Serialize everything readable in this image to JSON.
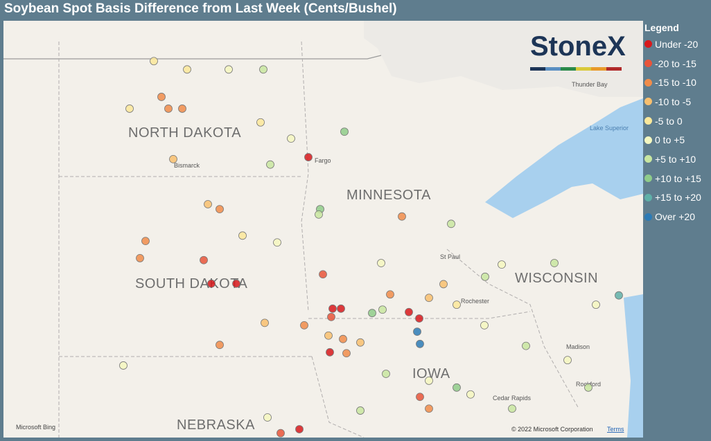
{
  "title": "Soybean Spot Basis Difference from Last Week (Cents/Bushel)",
  "legend": {
    "title": "Legend",
    "items": [
      {
        "label": "Under -20",
        "color": "#d7191c"
      },
      {
        "label": "-20 to -15",
        "color": "#e8553a"
      },
      {
        "label": "-15 to -10",
        "color": "#f08c4a"
      },
      {
        "label": "-10 to -5",
        "color": "#f8bf6e"
      },
      {
        "label": "-5 to 0",
        "color": "#fbe89a"
      },
      {
        "label": "0 to +5",
        "color": "#f4f7c0"
      },
      {
        "label": "+5 to +10",
        "color": "#c8e6a0"
      },
      {
        "label": "+10 to +15",
        "color": "#8fcc8a"
      },
      {
        "label": "+15 to +20",
        "color": "#5fb0a8"
      },
      {
        "label": "Over +20",
        "color": "#2c7bb6"
      }
    ]
  },
  "logo": "StoneX",
  "map": {
    "states": [
      "NORTH DAKOTA",
      "SOUTH DAKOTA",
      "MINNESOTA",
      "WISCONSIN",
      "IOWA",
      "NEBRASKA"
    ],
    "places": [
      "Bismarck",
      "Fargo",
      "St Paul",
      "Rochester",
      "Madison",
      "Rockford",
      "Cedar Rapids",
      "Thunder Bay",
      "Lake Superior"
    ],
    "attribution": "© 2022 Microsoft Corporation",
    "terms": "Terms",
    "provider": "Microsoft Bing"
  },
  "points": [
    {
      "lon": -101.3,
      "lat": 48.93,
      "bin": 4
    },
    {
      "lon": -101.08,
      "lat": 48.2,
      "bin": 2
    },
    {
      "lon": -100.88,
      "lat": 47.96,
      "bin": 2
    },
    {
      "lon": -100.48,
      "lat": 47.96,
      "bin": 2
    },
    {
      "lon": -102.0,
      "lat": 47.96,
      "bin": 4
    },
    {
      "lon": -98.22,
      "lat": 47.68,
      "bin": 4
    },
    {
      "lon": -96.84,
      "lat": 46.97,
      "bin": 0
    },
    {
      "lon": -95.8,
      "lat": 47.49,
      "bin": 7
    },
    {
      "lon": -97.94,
      "lat": 46.82,
      "bin": 6
    },
    {
      "lon": -99.4,
      "lat": 45.91,
      "bin": 2
    },
    {
      "lon": -101.54,
      "lat": 45.26,
      "bin": 2
    },
    {
      "lon": -101.7,
      "lat": 44.91,
      "bin": 2
    },
    {
      "lon": -99.64,
      "lat": 44.39,
      "bin": 0
    },
    {
      "lon": -98.92,
      "lat": 44.39,
      "bin": 0
    },
    {
      "lon": -99.86,
      "lat": 44.87,
      "bin": 1
    },
    {
      "lon": -99.4,
      "lat": 43.14,
      "bin": 2
    },
    {
      "lon": -102.18,
      "lat": 42.72,
      "bin": 5
    },
    {
      "lon": -96.5,
      "lat": 45.91,
      "bin": 7
    },
    {
      "lon": -94.14,
      "lat": 45.76,
      "bin": 2
    },
    {
      "lon": -92.72,
      "lat": 45.61,
      "bin": 6
    },
    {
      "lon": -91.26,
      "lat": 44.78,
      "bin": 5
    },
    {
      "lon": -87.88,
      "lat": 44.15,
      "bin": 8
    },
    {
      "lon": -96.42,
      "lat": 44.58,
      "bin": 1
    },
    {
      "lon": -96.14,
      "lat": 43.88,
      "bin": 0
    },
    {
      "lon": -95.9,
      "lat": 43.88,
      "bin": 0
    },
    {
      "lon": -96.18,
      "lat": 43.71,
      "bin": 1
    },
    {
      "lon": -93.94,
      "lat": 43.81,
      "bin": 0
    },
    {
      "lon": -93.64,
      "lat": 43.68,
      "bin": 0
    },
    {
      "lon": -93.7,
      "lat": 43.41,
      "bin": 9
    },
    {
      "lon": -93.62,
      "lat": 43.16,
      "bin": 9
    },
    {
      "lon": -95.0,
      "lat": 43.79,
      "bin": 7
    },
    {
      "lon": -94.7,
      "lat": 43.86,
      "bin": 6
    },
    {
      "lon": -96.22,
      "lat": 42.99,
      "bin": 0
    },
    {
      "lon": -95.84,
      "lat": 43.26,
      "bin": 2
    },
    {
      "lon": -95.74,
      "lat": 42.97,
      "bin": 2
    },
    {
      "lon": -95.34,
      "lat": 43.19,
      "bin": 3
    },
    {
      "lon": -96.26,
      "lat": 43.33,
      "bin": 3
    },
    {
      "lon": -96.96,
      "lat": 43.54,
      "bin": 2
    },
    {
      "lon": -98.1,
      "lat": 43.59,
      "bin": 3
    },
    {
      "lon": -94.48,
      "lat": 44.17,
      "bin": 2
    },
    {
      "lon": -93.36,
      "lat": 44.1,
      "bin": 3
    },
    {
      "lon": -92.56,
      "lat": 43.96,
      "bin": 4
    },
    {
      "lon": -91.76,
      "lat": 43.54,
      "bin": 5
    },
    {
      "lon": -90.56,
      "lat": 43.12,
      "bin": 6
    },
    {
      "lon": -89.36,
      "lat": 42.83,
      "bin": 5
    },
    {
      "lon": -88.76,
      "lat": 42.27,
      "bin": 6
    },
    {
      "lon": -94.6,
      "lat": 42.55,
      "bin": 6
    },
    {
      "lon": -93.36,
      "lat": 42.41,
      "bin": 5
    },
    {
      "lon": -93.62,
      "lat": 42.08,
      "bin": 1
    },
    {
      "lon": -93.36,
      "lat": 41.84,
      "bin": 2
    },
    {
      "lon": -92.16,
      "lat": 42.13,
      "bin": 5
    },
    {
      "lon": -90.96,
      "lat": 41.84,
      "bin": 6
    },
    {
      "lon": -92.56,
      "lat": 42.27,
      "bin": 7
    },
    {
      "lon": -97.64,
      "lat": 41.34,
      "bin": 1
    },
    {
      "lon": -97.1,
      "lat": 41.42,
      "bin": 0
    },
    {
      "lon": -98.02,
      "lat": 41.66,
      "bin": 5
    },
    {
      "lon": -95.34,
      "lat": 41.8,
      "bin": 6
    },
    {
      "lon": -96.54,
      "lat": 45.8,
      "bin": 6
    },
    {
      "lon": -97.34,
      "lat": 47.35,
      "bin": 5
    },
    {
      "lon": -98.14,
      "lat": 48.76,
      "bin": 6
    },
    {
      "lon": -99.14,
      "lat": 48.76,
      "bin": 5
    },
    {
      "lon": -100.34,
      "lat": 48.76,
      "bin": 4
    },
    {
      "lon": -100.74,
      "lat": 46.93,
      "bin": 3
    },
    {
      "lon": -99.74,
      "lat": 46.01,
      "bin": 3
    },
    {
      "lon": -98.74,
      "lat": 45.37,
      "bin": 4
    },
    {
      "lon": -97.74,
      "lat": 45.23,
      "bin": 5
    },
    {
      "lon": -94.74,
      "lat": 44.81,
      "bin": 5
    },
    {
      "lon": -91.74,
      "lat": 44.53,
      "bin": 6
    },
    {
      "lon": -89.74,
      "lat": 44.81,
      "bin": 6
    },
    {
      "lon": -88.54,
      "lat": 43.96,
      "bin": 5
    },
    {
      "lon": -92.94,
      "lat": 44.38,
      "bin": 3
    }
  ]
}
